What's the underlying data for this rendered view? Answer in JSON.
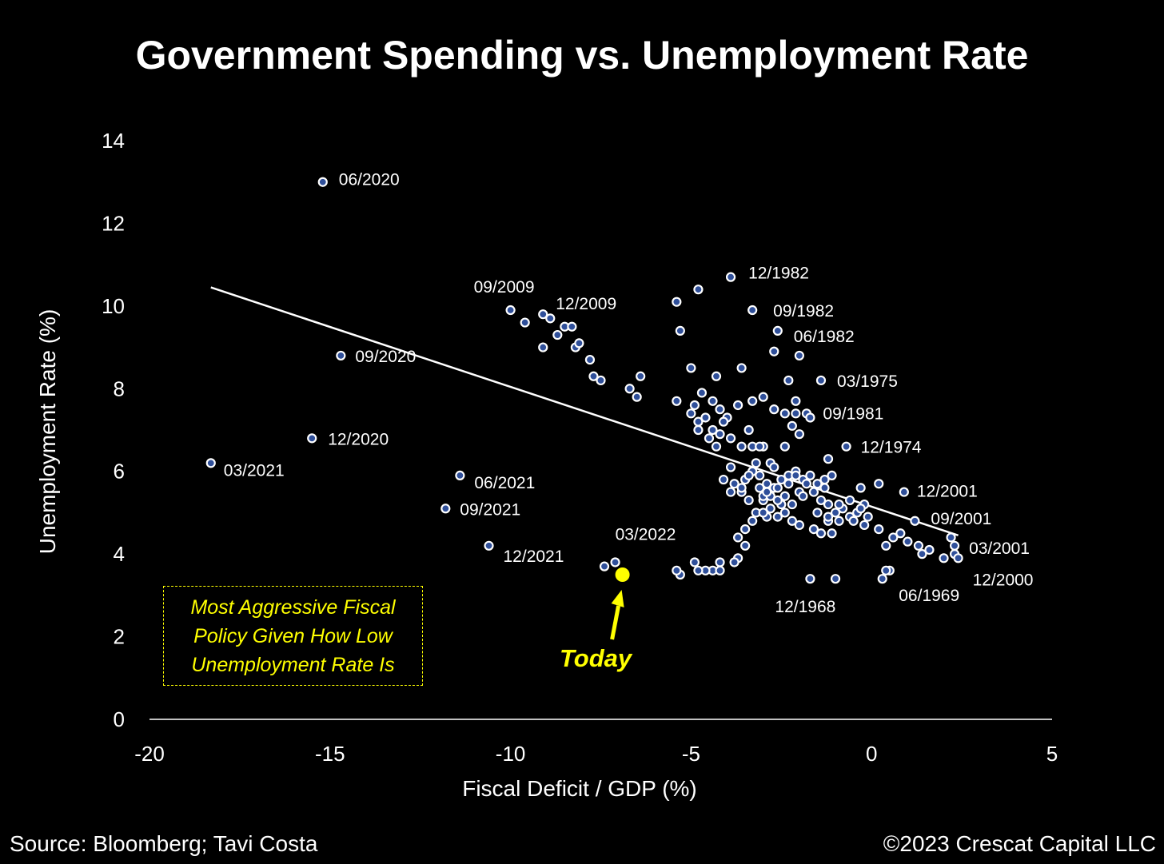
{
  "header": {
    "title": "Government Spending vs. Unemployment Rate"
  },
  "footer": {
    "source": "Source: Bloomberg; Tavi Costa",
    "copyright": "©2023 Crescat Capital LLC"
  },
  "callout": {
    "lines": [
      "Most Aggressive Fiscal",
      "Policy Given How Low",
      "Unemployment Rate Is"
    ]
  },
  "today_label": "Today",
  "colors": {
    "background": "#000000",
    "point_fill": "#2f4f9a",
    "point_stroke": "#ffffff",
    "highlight": "#ffff00",
    "trendline": "#ffffff",
    "text": "#ffffff"
  },
  "chart_data": {
    "type": "scatter",
    "title": "Government Spending vs. Unemployment Rate",
    "xlabel": "Fiscal Deficit / GDP (%)",
    "ylabel": "Unemployment Rate (%)",
    "xlim": [
      -20,
      5
    ],
    "ylim": [
      0,
      14
    ],
    "xticks": [
      -20,
      -15,
      -10,
      -5,
      0,
      5
    ],
    "yticks": [
      0,
      2,
      4,
      6,
      8,
      10,
      12,
      14
    ],
    "grid": false,
    "trendline": {
      "x": [
        -18.3,
        2.4
      ],
      "y": [
        10.45,
        4.45
      ]
    },
    "highlight": {
      "label": "Today",
      "x": -6.9,
      "y": 3.5
    },
    "labeled_points": [
      {
        "label": "06/2020",
        "x": -15.2,
        "y": 13.0
      },
      {
        "label": "09/2020",
        "x": -14.7,
        "y": 8.8
      },
      {
        "label": "12/2020",
        "x": -15.5,
        "y": 6.8
      },
      {
        "label": "03/2021",
        "x": -18.3,
        "y": 6.2
      },
      {
        "label": "06/2021",
        "x": -11.4,
        "y": 5.9
      },
      {
        "label": "09/2021",
        "x": -11.8,
        "y": 5.1
      },
      {
        "label": "12/2021",
        "x": -10.6,
        "y": 4.2
      },
      {
        "label": "09/2009",
        "x": -10.0,
        "y": 9.9
      },
      {
        "label": "12/2009",
        "x": -9.1,
        "y": 9.8
      },
      {
        "label": "03/2022",
        "x": -7.1,
        "y": 3.8
      },
      {
        "label": "12/1982",
        "x": -3.9,
        "y": 10.7
      },
      {
        "label": "09/1982",
        "x": -3.3,
        "y": 9.9
      },
      {
        "label": "06/1982",
        "x": -2.6,
        "y": 9.4
      },
      {
        "label": "03/1975",
        "x": -1.4,
        "y": 8.2
      },
      {
        "label": "09/1981",
        "x": -1.7,
        "y": 7.3
      },
      {
        "label": "12/1974",
        "x": -0.7,
        "y": 6.6
      },
      {
        "label": "12/2001",
        "x": 0.9,
        "y": 5.5
      },
      {
        "label": "09/2001",
        "x": 1.2,
        "y": 4.8
      },
      {
        "label": "03/2001",
        "x": 2.3,
        "y": 4.2
      },
      {
        "label": "12/2000",
        "x": 2.4,
        "y": 3.9
      },
      {
        "label": "06/1969",
        "x": 0.4,
        "y": 3.6
      },
      {
        "label": "12/1968",
        "x": -1.7,
        "y": 3.4
      }
    ],
    "points": [
      [
        -7.4,
        3.7
      ],
      [
        -9.6,
        9.6
      ],
      [
        -9.1,
        9.0
      ],
      [
        -8.9,
        9.7
      ],
      [
        -8.7,
        9.3
      ],
      [
        -8.5,
        9.5
      ],
      [
        -8.3,
        9.5
      ],
      [
        -8.2,
        9.0
      ],
      [
        -8.1,
        9.1
      ],
      [
        -7.8,
        8.7
      ],
      [
        -7.7,
        8.3
      ],
      [
        -7.5,
        8.2
      ],
      [
        -6.7,
        8.0
      ],
      [
        -6.5,
        7.8
      ],
      [
        -6.4,
        8.3
      ],
      [
        -5.4,
        10.1
      ],
      [
        -4.8,
        10.4
      ],
      [
        -5.3,
        9.4
      ],
      [
        -5.0,
        8.5
      ],
      [
        -4.3,
        8.3
      ],
      [
        -3.6,
        8.5
      ],
      [
        -5.4,
        7.7
      ],
      [
        -4.7,
        7.9
      ],
      [
        -4.4,
        7.7
      ],
      [
        -4.2,
        7.5
      ],
      [
        -4.0,
        7.3
      ],
      [
        -3.7,
        7.6
      ],
      [
        -3.3,
        7.7
      ],
      [
        -3.0,
        7.8
      ],
      [
        -4.9,
        7.6
      ],
      [
        -4.8,
        7.2
      ],
      [
        -4.6,
        7.3
      ],
      [
        -4.4,
        7.0
      ],
      [
        -4.2,
        6.9
      ],
      [
        -3.9,
        6.8
      ],
      [
        -3.6,
        6.6
      ],
      [
        -3.3,
        6.6
      ],
      [
        -3.0,
        6.6
      ],
      [
        -2.7,
        7.5
      ],
      [
        -2.4,
        7.4
      ],
      [
        -2.1,
        7.4
      ],
      [
        -2.2,
        7.1
      ],
      [
        -2.0,
        6.9
      ],
      [
        -2.4,
        6.6
      ],
      [
        -5.0,
        7.4
      ],
      [
        -4.8,
        7.0
      ],
      [
        -4.5,
        6.8
      ],
      [
        -4.3,
        6.6
      ],
      [
        -3.1,
        6.6
      ],
      [
        -2.8,
        6.2
      ],
      [
        -3.3,
        6.0
      ],
      [
        -3.5,
        5.8
      ],
      [
        -3.8,
        5.7
      ],
      [
        -3.6,
        5.5
      ],
      [
        -3.9,
        6.1
      ],
      [
        -3.4,
        5.3
      ],
      [
        -3.1,
        5.9
      ],
      [
        -2.9,
        5.7
      ],
      [
        -2.7,
        5.6
      ],
      [
        -2.5,
        5.8
      ],
      [
        -2.3,
        5.9
      ],
      [
        -2.1,
        6.0
      ],
      [
        -1.9,
        5.8
      ],
      [
        -1.7,
        5.9
      ],
      [
        -1.5,
        5.7
      ],
      [
        -1.3,
        5.8
      ],
      [
        -1.1,
        5.9
      ],
      [
        -1.6,
        5.5
      ],
      [
        -1.4,
        5.3
      ],
      [
        -1.2,
        5.2
      ],
      [
        -1.0,
        5.0
      ],
      [
        -0.8,
        5.1
      ],
      [
        -0.6,
        4.9
      ],
      [
        -0.4,
        5.0
      ],
      [
        -0.2,
        5.2
      ],
      [
        -3.0,
        5.3
      ],
      [
        -3.2,
        5.0
      ],
      [
        -2.8,
        5.1
      ],
      [
        -2.6,
        4.9
      ],
      [
        -2.4,
        5.0
      ],
      [
        -2.2,
        4.8
      ],
      [
        -3.6,
        5.6
      ],
      [
        -3.4,
        5.9
      ],
      [
        -3.2,
        6.2
      ],
      [
        -3.0,
        5.4
      ],
      [
        -2.8,
        5.4
      ],
      [
        -2.6,
        5.6
      ],
      [
        -2.4,
        5.4
      ],
      [
        -2.2,
        5.2
      ],
      [
        -2.0,
        5.5
      ],
      [
        -1.8,
        5.7
      ],
      [
        -3.3,
        4.8
      ],
      [
        -3.5,
        4.6
      ],
      [
        -3.7,
        4.4
      ],
      [
        -3.5,
        4.2
      ],
      [
        -3.7,
        3.9
      ],
      [
        -3.8,
        3.8
      ],
      [
        -4.2,
        3.8
      ],
      [
        -4.4,
        3.6
      ],
      [
        -4.6,
        3.6
      ],
      [
        -4.8,
        3.6
      ],
      [
        -5.3,
        3.5
      ],
      [
        -5.4,
        3.6
      ],
      [
        -4.9,
        3.8
      ],
      [
        -4.2,
        3.6
      ],
      [
        -2.0,
        4.7
      ],
      [
        -1.6,
        4.6
      ],
      [
        -1.4,
        4.5
      ],
      [
        -1.1,
        4.5
      ],
      [
        -1.2,
        4.8
      ],
      [
        -0.9,
        4.8
      ],
      [
        -0.5,
        4.8
      ],
      [
        -0.2,
        4.7
      ],
      [
        0.2,
        4.6
      ],
      [
        0.4,
        4.2
      ],
      [
        0.6,
        4.4
      ],
      [
        0.8,
        4.5
      ],
      [
        1.0,
        4.3
      ],
      [
        1.3,
        4.2
      ],
      [
        1.4,
        4.0
      ],
      [
        1.6,
        4.1
      ],
      [
        2.0,
        3.9
      ],
      [
        2.2,
        4.4
      ],
      [
        2.3,
        4.0
      ],
      [
        -0.3,
        5.6
      ],
      [
        0.2,
        5.7
      ],
      [
        -2.1,
        7.7
      ],
      [
        -1.2,
        6.3
      ],
      [
        -2.7,
        8.9
      ],
      [
        -2.3,
        8.2
      ],
      [
        -2.0,
        8.8
      ],
      [
        -1.8,
        7.4
      ],
      [
        -3.4,
        7.0
      ],
      [
        -1.0,
        3.4
      ],
      [
        0.3,
        3.4
      ],
      [
        0.5,
        3.6
      ],
      [
        -4.1,
        7.2
      ],
      [
        -2.5,
        5.2
      ],
      [
        -2.9,
        4.9
      ],
      [
        -3.9,
        5.5
      ],
      [
        -4.1,
        5.8
      ],
      [
        -1.9,
        5.4
      ],
      [
        -1.3,
        5.6
      ],
      [
        -0.9,
        5.2
      ],
      [
        -0.6,
        5.3
      ],
      [
        -0.1,
        4.9
      ],
      [
        -0.3,
        5.1
      ],
      [
        -2.3,
        5.7
      ],
      [
        -2.7,
        6.1
      ],
      [
        -3.1,
        5.6
      ],
      [
        -1.5,
        5.0
      ],
      [
        -1.2,
        4.9
      ],
      [
        -2.1,
        5.9
      ],
      [
        -2.6,
        5.3
      ],
      [
        -3.0,
        5.0
      ],
      [
        -2.9,
        5.5
      ]
    ]
  }
}
